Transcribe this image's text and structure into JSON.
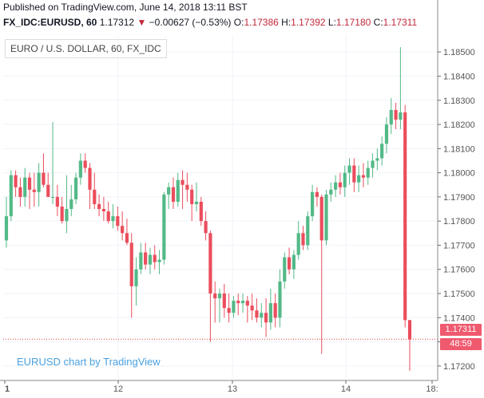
{
  "header": {
    "published": "Published on TradingView.com, June 14, 2018 13:11 BST",
    "symbol": "FX_IDC:EURUSD, 60",
    "last": "1.17312",
    "change_arrow": "▼",
    "change": "−0.00627 (−0.53%)",
    "o_label": "O:",
    "o": "1.17386",
    "h_label": "H:",
    "h": "1.17392",
    "l_label": "L:",
    "l": "1.17180",
    "c_label": "C:",
    "c": "1.17311"
  },
  "title_box": "EURO / U.S. DOLLAR, 60, FX_IDC",
  "watermark": "EURUSD chart by TradingView",
  "price_tag": {
    "last": "1.17311",
    "countdown": "48:59"
  },
  "colors": {
    "up": "#53b987",
    "down": "#eb4d5c",
    "last_line": "#e04040",
    "grid": "#f0f3fa",
    "watermark": "#4aa1e0"
  },
  "chart_data": {
    "type": "candlestick",
    "title": "EURO / U.S. DOLLAR, 60, FX_IDC",
    "y_ticks": [
      "1.17200",
      "1.17300",
      "1.17400",
      "1.17500",
      "1.17600",
      "1.17700",
      "1.17800",
      "1.17900",
      "1.18000",
      "1.18100",
      "1.18200",
      "1.18300",
      "1.18400",
      "1.18500"
    ],
    "ylim": [
      1.1714,
      1.1857
    ],
    "x_ticks": [
      "1",
      "12",
      "13",
      "14",
      "18:"
    ],
    "last_price": 1.17311,
    "grid": true,
    "candles": [
      [
        1.1772,
        1.179,
        1.1769,
        1.1782
      ],
      [
        1.1782,
        1.1801,
        1.178,
        1.1799
      ],
      [
        1.1799,
        1.1801,
        1.179,
        1.1794
      ],
      [
        1.1794,
        1.1798,
        1.1786,
        1.179
      ],
      [
        1.179,
        1.1802,
        1.1786,
        1.1798
      ],
      [
        1.1798,
        1.18,
        1.1785,
        1.1793
      ],
      [
        1.1793,
        1.18,
        1.1786,
        1.1792
      ],
      [
        1.1792,
        1.1804,
        1.1786,
        1.18
      ],
      [
        1.18,
        1.1808,
        1.1794,
        1.1795
      ],
      [
        1.1795,
        1.18,
        1.179,
        1.179
      ],
      [
        1.179,
        1.1821,
        1.1787,
        1.179
      ],
      [
        1.179,
        1.1795,
        1.1782,
        1.1786
      ],
      [
        1.1786,
        1.179,
        1.1779,
        1.178
      ],
      [
        1.178,
        1.1799,
        1.1775,
        1.1785
      ],
      [
        1.1785,
        1.1795,
        1.1782,
        1.1789
      ],
      [
        1.1789,
        1.18,
        1.1787,
        1.1798
      ],
      [
        1.1798,
        1.1808,
        1.1795,
        1.1805
      ],
      [
        1.1805,
        1.1808,
        1.18,
        1.1802
      ],
      [
        1.1802,
        1.1804,
        1.1785,
        1.1793
      ],
      [
        1.1793,
        1.18,
        1.1785,
        1.1787
      ],
      [
        1.1787,
        1.1791,
        1.1782,
        1.1785
      ],
      [
        1.1785,
        1.179,
        1.178,
        1.1784
      ],
      [
        1.1784,
        1.1788,
        1.1779,
        1.178
      ],
      [
        1.178,
        1.1787,
        1.1777,
        1.1782
      ],
      [
        1.1782,
        1.1786,
        1.1776,
        1.1778
      ],
      [
        1.1778,
        1.1784,
        1.1772,
        1.1775
      ],
      [
        1.1775,
        1.1781,
        1.177,
        1.1771
      ],
      [
        1.1771,
        1.1775,
        1.174,
        1.1753
      ],
      [
        1.1753,
        1.1765,
        1.1745,
        1.176
      ],
      [
        1.176,
        1.1771,
        1.1758,
        1.1767
      ],
      [
        1.1767,
        1.1771,
        1.176,
        1.1762
      ],
      [
        1.1762,
        1.1769,
        1.1758,
        1.1766
      ],
      [
        1.1766,
        1.177,
        1.176,
        1.1763
      ],
      [
        1.1763,
        1.1768,
        1.1758,
        1.1764
      ],
      [
        1.1764,
        1.1792,
        1.1762,
        1.1791
      ],
      [
        1.1791,
        1.1796,
        1.1785,
        1.1794
      ],
      [
        1.1794,
        1.1798,
        1.1785,
        1.1788
      ],
      [
        1.1788,
        1.18,
        1.1786,
        1.1797
      ],
      [
        1.1797,
        1.1801,
        1.1785,
        1.1795
      ],
      [
        1.1795,
        1.18,
        1.1788,
        1.1793
      ],
      [
        1.1793,
        1.1795,
        1.178,
        1.1787
      ],
      [
        1.1787,
        1.1796,
        1.1784,
        1.1788
      ],
      [
        1.1788,
        1.179,
        1.1778,
        1.178
      ],
      [
        1.178,
        1.1784,
        1.1772,
        1.1775
      ],
      [
        1.1775,
        1.1776,
        1.173,
        1.175
      ],
      [
        1.175,
        1.1755,
        1.1738,
        1.1748
      ],
      [
        1.1748,
        1.1752,
        1.1738,
        1.175
      ],
      [
        1.175,
        1.1754,
        1.174,
        1.1744
      ],
      [
        1.1744,
        1.175,
        1.1738,
        1.1742
      ],
      [
        1.1742,
        1.1749,
        1.174,
        1.1747
      ],
      [
        1.1747,
        1.175,
        1.1741,
        1.1746
      ],
      [
        1.1746,
        1.175,
        1.1742,
        1.1747
      ],
      [
        1.1747,
        1.1749,
        1.1738,
        1.1745
      ],
      [
        1.1745,
        1.175,
        1.1739,
        1.1743
      ],
      [
        1.1743,
        1.1748,
        1.1738,
        1.174
      ],
      [
        1.174,
        1.1746,
        1.1736,
        1.1742
      ],
      [
        1.1742,
        1.1748,
        1.1732,
        1.1738
      ],
      [
        1.1738,
        1.1752,
        1.1735,
        1.1746
      ],
      [
        1.1746,
        1.175,
        1.1736,
        1.174
      ],
      [
        1.174,
        1.176,
        1.1736,
        1.1755
      ],
      [
        1.1755,
        1.1767,
        1.1752,
        1.1765
      ],
      [
        1.1765,
        1.1769,
        1.1758,
        1.176
      ],
      [
        1.176,
        1.1768,
        1.1756,
        1.1766
      ],
      [
        1.1766,
        1.178,
        1.1764,
        1.1775
      ],
      [
        1.1775,
        1.1778,
        1.1768,
        1.177
      ],
      [
        1.177,
        1.1784,
        1.1768,
        1.1782
      ],
      [
        1.1782,
        1.1795,
        1.178,
        1.1792
      ],
      [
        1.1792,
        1.1794,
        1.1786,
        1.179
      ],
      [
        1.179,
        1.1791,
        1.1725,
        1.1772
      ],
      [
        1.1772,
        1.1793,
        1.177,
        1.1791
      ],
      [
        1.1791,
        1.1796,
        1.1788,
        1.1793
      ],
      [
        1.1793,
        1.1799,
        1.179,
        1.1796
      ],
      [
        1.1796,
        1.18,
        1.1791,
        1.1794
      ],
      [
        1.1794,
        1.1803,
        1.179,
        1.18
      ],
      [
        1.18,
        1.1806,
        1.1795,
        1.1803
      ],
      [
        1.1803,
        1.1806,
        1.1792,
        1.1796
      ],
      [
        1.1796,
        1.1803,
        1.1792,
        1.1799
      ],
      [
        1.1799,
        1.1804,
        1.1794,
        1.1798
      ],
      [
        1.1798,
        1.1805,
        1.1795,
        1.1802
      ],
      [
        1.1802,
        1.1808,
        1.1798,
        1.1805
      ],
      [
        1.1805,
        1.181,
        1.1801,
        1.1806
      ],
      [
        1.1806,
        1.1815,
        1.1803,
        1.1812
      ],
      [
        1.1812,
        1.1823,
        1.1808,
        1.182
      ],
      [
        1.182,
        1.1831,
        1.1816,
        1.1826
      ],
      [
        1.1826,
        1.1829,
        1.1818,
        1.1822
      ],
      [
        1.1822,
        1.1852,
        1.1818,
        1.1825
      ],
      [
        1.1825,
        1.1828,
        1.1736,
        1.1739
      ],
      [
        1.1739,
        1.1739,
        1.1718,
        1.1731
      ]
    ]
  }
}
